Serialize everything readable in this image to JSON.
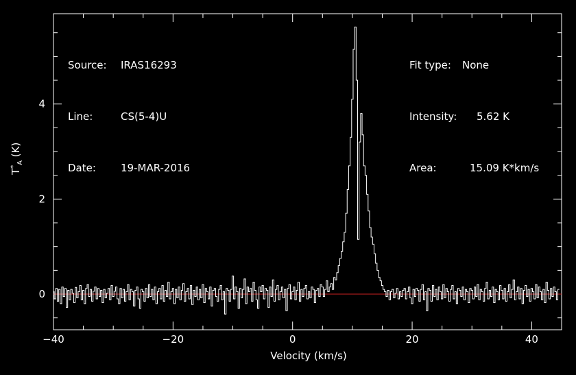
{
  "header_left": {
    "source_label": "Source:",
    "source_value": "IRAS16293",
    "line_label": "Line:",
    "line_value": "CS(5-4)U",
    "date_label": "Date:",
    "date_value": "19-MAR-2016"
  },
  "header_right": {
    "fit_label": "Fit type:",
    "fit_value": "None",
    "intensity_label": "Intensity:",
    "intensity_value": "5.62 K",
    "area_label": "Area:",
    "area_value": "15.09 K*km/s"
  },
  "chart_data": {
    "type": "line",
    "step": true,
    "xlabel": "Velocity (km/s)",
    "ylabel_main": "T",
    "ylabel_sup": "*",
    "ylabel_sub": "A",
    "ylabel_unit": "(K)",
    "xlim": [
      -40,
      45
    ],
    "ylim": [
      -0.75,
      5.9
    ],
    "x_ticks": [
      -40,
      -20,
      0,
      20,
      40
    ],
    "x_tick_labels": [
      "−40",
      "−20",
      "0",
      "20",
      "40"
    ],
    "y_ticks": [
      0,
      2,
      4
    ],
    "y_tick_labels": [
      "0",
      "2",
      "4"
    ],
    "baseline": 0,
    "colors": {
      "spectrum": "#ffffff",
      "baseline": "#cc2222",
      "axes": "#ffffff"
    },
    "x_start": -40,
    "x_step": 0.25,
    "values": [
      0.05,
      -0.1,
      0.12,
      -0.15,
      0.1,
      -0.2,
      0.15,
      -0.05,
      0.12,
      -0.28,
      0.08,
      -0.12,
      0.1,
      0.02,
      -0.18,
      0.14,
      -0.08,
      0.05,
      0.18,
      -0.12,
      0.08,
      -0.2,
      0.12,
      0.2,
      -0.05,
      0.1,
      -0.15,
      0.06,
      0.15,
      -0.1,
      0.12,
      -0.05,
      0.08,
      -0.18,
      0.1,
      -0.08,
      0.02,
      0.12,
      -0.12,
      0.18,
      -0.05,
      0.06,
      0.15,
      -0.1,
      -0.2,
      0.12,
      -0.08,
      0.1,
      -0.15,
      0.05,
      0.2,
      -0.12,
      0.1,
      0.05,
      -0.25,
      0.08,
      0.15,
      -0.1,
      -0.3,
      0.1,
      0.05,
      -0.15,
      0.12,
      -0.08,
      0.2,
      -0.05,
      0.1,
      -0.12,
      0.15,
      -0.2,
      0.05,
      0.12,
      -0.1,
      0.18,
      -0.15,
      0.08,
      -0.05,
      0.25,
      -0.1,
      0.05,
      0.12,
      -0.2,
      0.1,
      -0.08,
      0.15,
      -0.12,
      0.08,
      0.22,
      -0.15,
      0.05,
      0.12,
      -0.1,
      0.18,
      -0.22,
      0.08,
      -0.05,
      0.15,
      -0.12,
      0.1,
      -0.08,
      0.2,
      -0.18,
      0.12,
      0.05,
      -0.1,
      0.15,
      -0.25,
      0.08,
      0.12,
      -0.05,
      -0.15,
      0.1,
      0.18,
      -0.12,
      0.05,
      -0.42,
      0.12,
      0.08,
      -0.15,
      0.1,
      0.38,
      -0.1,
      0.15,
      0.05,
      -0.3,
      0.12,
      -0.08,
      0.1,
      0.32,
      -0.2,
      0.15,
      0.05,
      0.12,
      -0.15,
      0.25,
      0.08,
      -0.12,
      -0.3,
      0.15,
      0.05,
      0.18,
      -0.1,
      0.12,
      0.08,
      -0.28,
      0.15,
      -0.05,
      0.3,
      -0.15,
      0.1,
      0.18,
      -0.12,
      0.05,
      0.15,
      -0.08,
      0.1,
      -0.35,
      0.12,
      0.2,
      -0.1,
      0.05,
      0.15,
      -0.12,
      0.08,
      0.25,
      -0.15,
      0.1,
      -0.05,
      0.12,
      0.18,
      -0.1,
      0.05,
      -0.08,
      0.15,
      0.1,
      -0.18,
      0.08,
      0.12,
      -0.05,
      0.2,
      0.15,
      -0.05,
      0.1,
      0.28,
      0.05,
      0.15,
      0.22,
      0.1,
      0.35,
      0.3,
      0.45,
      0.6,
      0.75,
      0.9,
      1.1,
      1.3,
      1.7,
      2.2,
      2.7,
      3.3,
      4.1,
      5.15,
      5.62,
      4.5,
      1.15,
      3.2,
      3.8,
      3.35,
      2.7,
      2.5,
      2.1,
      1.75,
      1.4,
      1.2,
      1.05,
      0.85,
      0.65,
      0.5,
      0.35,
      0.28,
      0.18,
      0.1,
      0.05,
      -0.05,
      0.08,
      -0.12,
      0.05,
      0.1,
      -0.08,
      0.02,
      0.12,
      -0.1,
      0.05,
      -0.05,
      0.08,
      0.12,
      -0.1,
      0.05,
      0.15,
      -0.08,
      -0.2,
      0.1,
      -0.05,
      0.12,
      0.08,
      -0.15,
      0.1,
      0.2,
      -0.12,
      0.05,
      -0.35,
      0.12,
      0.08,
      -0.15,
      0.18,
      -0.05,
      0.1,
      -0.12,
      0.15,
      0.05,
      -0.1,
      0.2,
      -0.08,
      0.12,
      0.05,
      -0.15,
      0.1,
      0.18,
      -0.1,
      0.05,
      -0.2,
      0.12,
      0.08,
      -0.05,
      0.15,
      -0.12,
      0.1,
      0.05,
      -0.18,
      0.12,
      0.08,
      -0.1,
      0.15,
      -0.05,
      0.2,
      -0.12,
      0.1,
      0.05,
      -0.15,
      0.12,
      0.25,
      -0.1,
      0.08,
      -0.05,
      0.15,
      -0.18,
      0.1,
      0.05,
      -0.12,
      0.18,
      0.08,
      -0.1,
      0.12,
      -0.15,
      0.05,
      0.2,
      -0.08,
      0.1,
      0.3,
      -0.12,
      0.05,
      0.15,
      -0.1,
      0.12,
      -0.2,
      0.08,
      0.18,
      -0.05,
      0.1,
      -0.15,
      0.12,
      0.05,
      -0.1,
      0.2,
      -0.08,
      0.15,
      0.05,
      -0.12,
      0.1,
      -0.18,
      0.25,
      0.08,
      -0.1,
      0.12,
      -0.05,
      0.15,
      0.05,
      -0.12,
      0.1
    ]
  }
}
